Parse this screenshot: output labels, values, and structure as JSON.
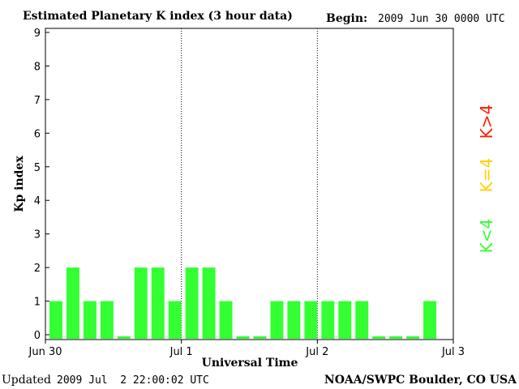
{
  "header": {
    "title": "Estimated Planetary K index (3 hour data)",
    "begin_label": "Begin:",
    "begin_value": "2009 Jun 30 0000 UTC"
  },
  "footer": {
    "updated_label": "Updated",
    "updated_value": "2009 Jul  2 22:00:02 UTC",
    "source": "NOAA/SWPC Boulder, CO USA"
  },
  "legend": {
    "high": "K>4",
    "mid": "K=4",
    "low": "K<4",
    "colors": {
      "high": "#ff2000",
      "mid": "#ffd200",
      "low": "#33ff33"
    }
  },
  "chart_data": {
    "type": "bar",
    "title": "Estimated Planetary K index (3 hour data)",
    "xlabel": "Universal Time",
    "ylabel": "Kp index",
    "ylim": [
      0,
      9
    ],
    "yticks": [
      0,
      1,
      2,
      3,
      4,
      5,
      6,
      7,
      8,
      9
    ],
    "x_tick_labels": [
      "Jun 30",
      "Jul 1",
      "Jul 2",
      "Jul 3"
    ],
    "x_range_days": [
      0,
      3
    ],
    "day_separators": [
      "Jul 1",
      "Jul 2"
    ],
    "interval": "3 hour",
    "values": [
      1,
      2,
      1,
      1,
      0,
      2,
      2,
      1,
      2,
      2,
      1,
      0,
      0,
      1,
      1,
      1,
      1,
      1,
      1,
      0,
      0,
      0,
      1
    ],
    "bar_color": "#33ff33"
  }
}
